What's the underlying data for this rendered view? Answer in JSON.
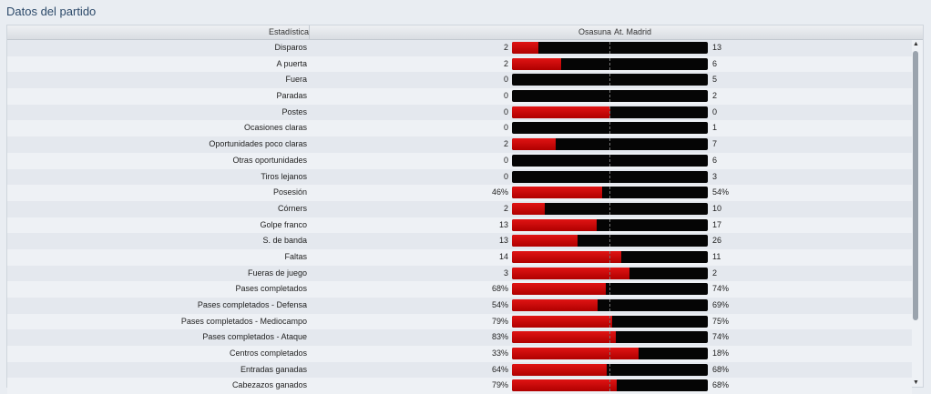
{
  "title": "Datos del partido",
  "header": {
    "stat": "Estadística",
    "home": "Osasuna",
    "away": "At. Madrid"
  },
  "colors": {
    "home": "#cc0000",
    "away": "#050505"
  },
  "rows": [
    {
      "label": "Disparos",
      "home": "2",
      "away": "13",
      "home_share": 0.133
    },
    {
      "label": "A puerta",
      "home": "2",
      "away": "6",
      "home_share": 0.25
    },
    {
      "label": "Fuera",
      "home": "0",
      "away": "5",
      "home_share": 0
    },
    {
      "label": "Paradas",
      "home": "0",
      "away": "2",
      "home_share": 0
    },
    {
      "label": "Postes",
      "home": "0",
      "away": "0",
      "home_share": 0.5
    },
    {
      "label": "Ocasiones claras",
      "home": "0",
      "away": "1",
      "home_share": 0
    },
    {
      "label": "Oportunidades poco claras",
      "home": "2",
      "away": "7",
      "home_share": 0.222
    },
    {
      "label": "Otras oportunidades",
      "home": "0",
      "away": "6",
      "home_share": 0
    },
    {
      "label": "Tiros lejanos",
      "home": "0",
      "away": "3",
      "home_share": 0
    },
    {
      "label": "Posesión",
      "home": "46%",
      "away": "54%",
      "home_share": 0.46
    },
    {
      "label": "Córners",
      "home": "2",
      "away": "10",
      "home_share": 0.167
    },
    {
      "label": "Golpe franco",
      "home": "13",
      "away": "17",
      "home_share": 0.433
    },
    {
      "label": "S. de banda",
      "home": "13",
      "away": "26",
      "home_share": 0.333
    },
    {
      "label": "Faltas",
      "home": "14",
      "away": "11",
      "home_share": 0.56
    },
    {
      "label": "Fueras de juego",
      "home": "3",
      "away": "2",
      "home_share": 0.6
    },
    {
      "label": "Pases completados",
      "home": "68%",
      "away": "74%",
      "home_share": 0.479
    },
    {
      "label": "Pases completados - Defensa",
      "home": "54%",
      "away": "69%",
      "home_share": 0.439
    },
    {
      "label": "Pases completados - Mediocampo",
      "home": "79%",
      "away": "75%",
      "home_share": 0.513
    },
    {
      "label": "Pases completados - Ataque",
      "home": "83%",
      "away": "74%",
      "home_share": 0.529
    },
    {
      "label": "Centros completados",
      "home": "33%",
      "away": "18%",
      "home_share": 0.647
    },
    {
      "label": "Entradas ganadas",
      "home": "64%",
      "away": "68%",
      "home_share": 0.485
    },
    {
      "label": "Cabezazos ganados",
      "home": "79%",
      "away": "68%",
      "home_share": 0.537
    }
  ],
  "scrollbar": {
    "up_icon": "▲",
    "down_icon": "▼"
  }
}
